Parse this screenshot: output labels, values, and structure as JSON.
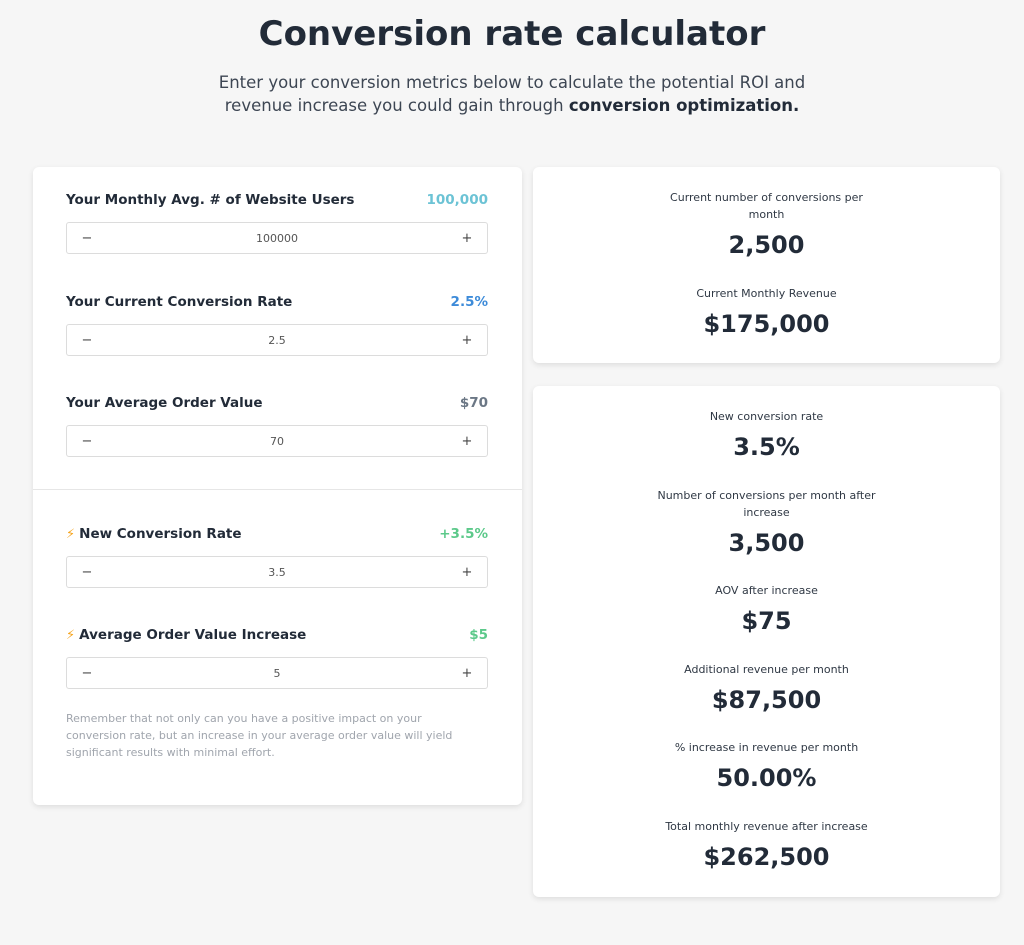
{
  "header": {
    "title": "Conversion rate calculator",
    "subtitle_plain": "Enter your conversion metrics below to calculate the potential ROI and revenue increase you could gain through",
    "subtitle_bold": "conversion optimization."
  },
  "inputs": {
    "users": {
      "label": "Your Monthly Avg. # of Website Users",
      "display": "100,000",
      "value": "100000",
      "color": "#6cc3d5"
    },
    "conversion_rate": {
      "label": "Your Current Conversion Rate",
      "display": "2.5%",
      "value": "2.5",
      "color": "#3d8bd9"
    },
    "aov": {
      "label": "Your Average Order Value",
      "display": "$70",
      "value": "70",
      "color": "#6b7785"
    },
    "new_rate": {
      "label": "New Conversion Rate",
      "display": "+3.5%",
      "value": "3.5",
      "color": "#5cc98a",
      "icon": "lightning-icon"
    },
    "aov_increase": {
      "label": "Average Order Value Increase",
      "display": "$5",
      "value": "5",
      "color": "#5cc98a",
      "icon": "lightning-icon"
    },
    "minus": "−",
    "plus": "+",
    "bolt": "⚡"
  },
  "note": "Remember that not only can you have a positive impact on your conversion rate, but an increase in your average order value will yield significant results with minimal effort.",
  "current": {
    "conversions_label": "Current number of conversions per month",
    "conversions_value": "2,500",
    "revenue_label": "Current Monthly Revenue",
    "revenue_value": "$175,000"
  },
  "projected": {
    "new_rate_label": "New conversion rate",
    "new_rate_value": "3.5%",
    "conversions_label": "Number of conversions per month after increase",
    "conversions_value": "3,500",
    "aov_label": "AOV after increase",
    "aov_value": "$75",
    "additional_label": "Additional revenue per month",
    "additional_value": "$87,500",
    "pct_label": "% increase in revenue per month",
    "pct_value": "50.00%",
    "total_label": "Total monthly revenue after increase",
    "total_value": "$262,500"
  }
}
